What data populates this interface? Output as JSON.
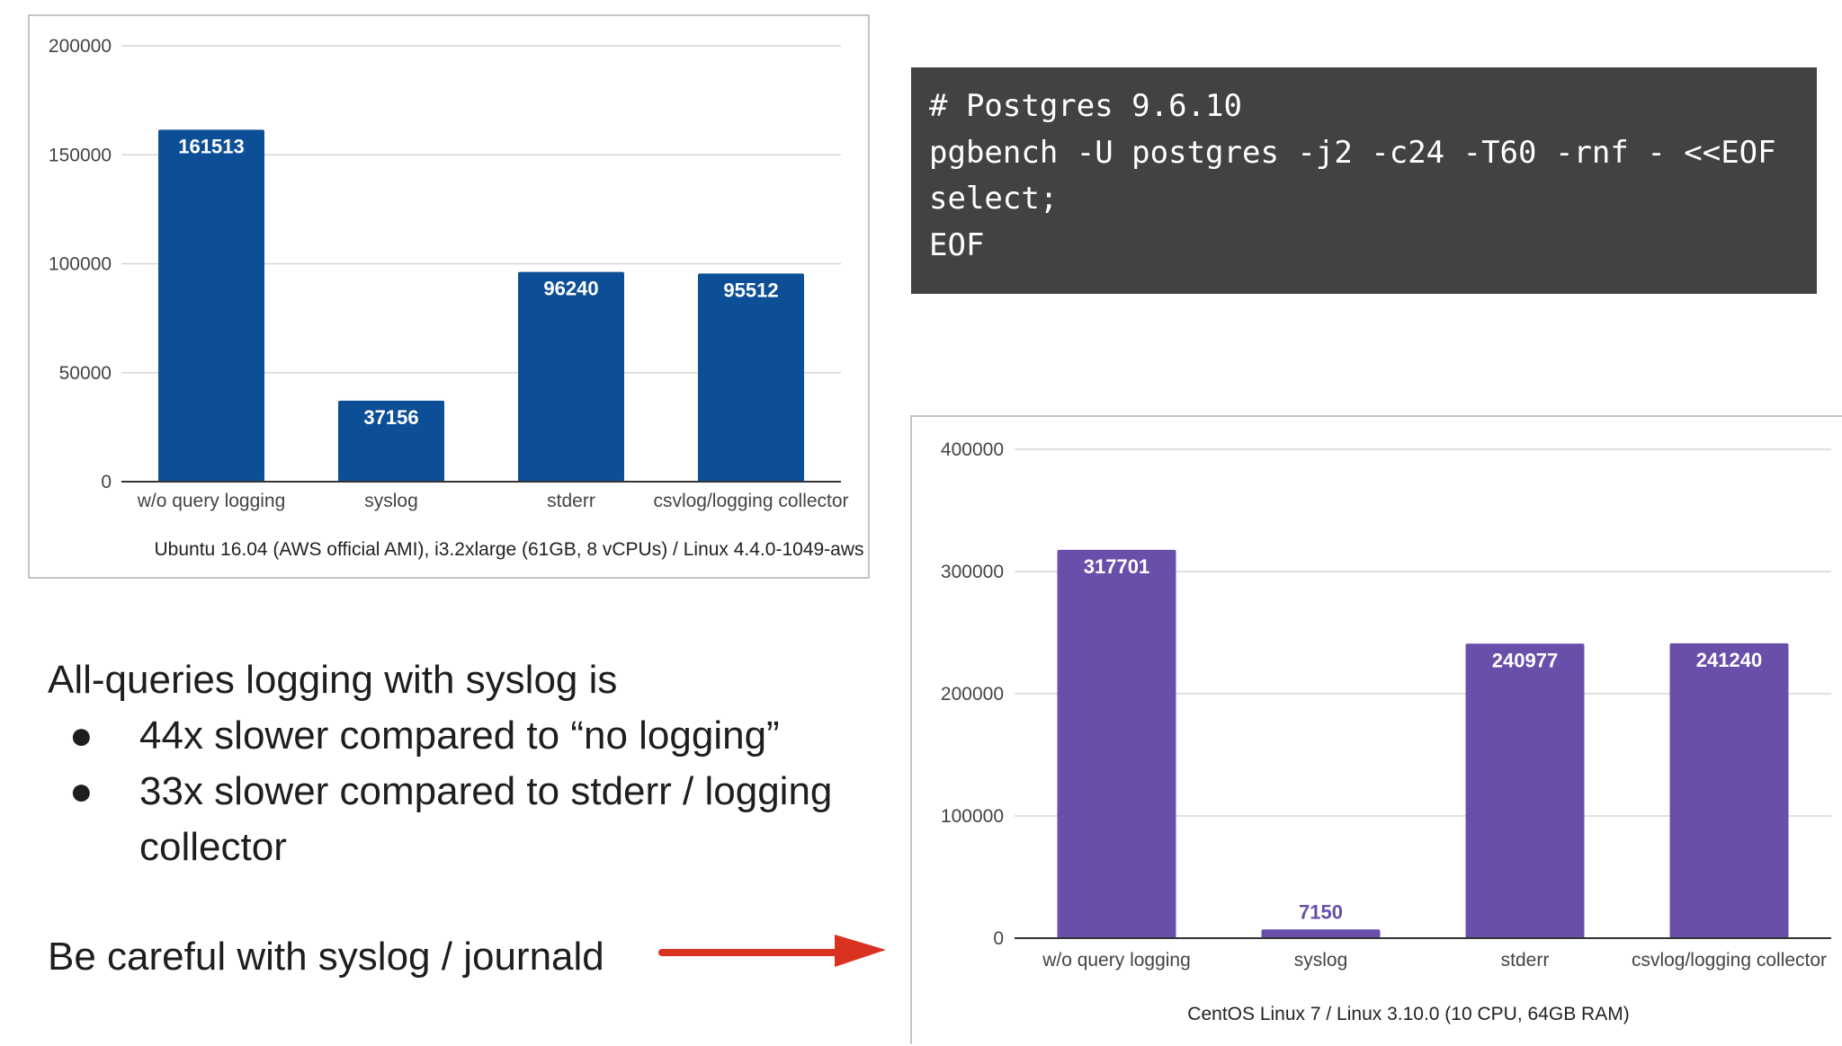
{
  "code_block": {
    "lines": [
      "# Postgres 9.6.10",
      "pgbench -U postgres -j2 -c24 -T60 -rnf - <<EOF",
      "select;",
      "EOF"
    ]
  },
  "notes": {
    "heading": "All-queries logging with syslog is",
    "bullet_symbol": "●",
    "items": [
      "44x slower compared to “no logging”",
      "33x slower compared to stderr / logging collector"
    ],
    "careful": "Be careful with syslog / journald"
  },
  "arrow": {
    "color": "#d93221",
    "icon": "arrow-right-icon"
  },
  "chart_data": [
    {
      "type": "bar",
      "title": "",
      "xlabel": "Ubuntu 16.04 (AWS official AMI), i3.2xlarge (61GB, 8 vCPUs) / Linux 4.4.0-1049-aws",
      "ylabel": "",
      "categories": [
        "w/o query logging",
        "syslog",
        "stderr",
        "csvlog/logging collector"
      ],
      "values": [
        161513,
        37156,
        96240,
        95512
      ],
      "data_labels": [
        "161513",
        "37156",
        "96240",
        "95512"
      ],
      "ylim": [
        0,
        200000
      ],
      "yticks": [
        0,
        50000,
        100000,
        150000,
        200000
      ],
      "ytick_labels": [
        "0",
        "50000",
        "100000",
        "150000",
        "200000"
      ],
      "grid": true,
      "legend": "none",
      "bar_color": "#0d4f97",
      "label_color": "#ffffff"
    },
    {
      "type": "bar",
      "title": "",
      "xlabel": "CentOS Linux 7 / Linux 3.10.0 (10 CPU, 64GB RAM)",
      "ylabel": "",
      "categories": [
        "w/o query logging",
        "syslog",
        "stderr",
        "csvlog/logging collector"
      ],
      "values": [
        317701,
        7150,
        240977,
        241240
      ],
      "data_labels": [
        "317701",
        "7150",
        "240977",
        "241240"
      ],
      "ylim": [
        0,
        400000
      ],
      "yticks": [
        0,
        100000,
        200000,
        300000,
        400000
      ],
      "ytick_labels": [
        "0",
        "100000",
        "200000",
        "300000",
        "400000"
      ],
      "grid": true,
      "legend": "none",
      "bar_color": "#6a4faa",
      "label_color": "#ffffff",
      "outside_label_color": "#6a4faa"
    }
  ]
}
